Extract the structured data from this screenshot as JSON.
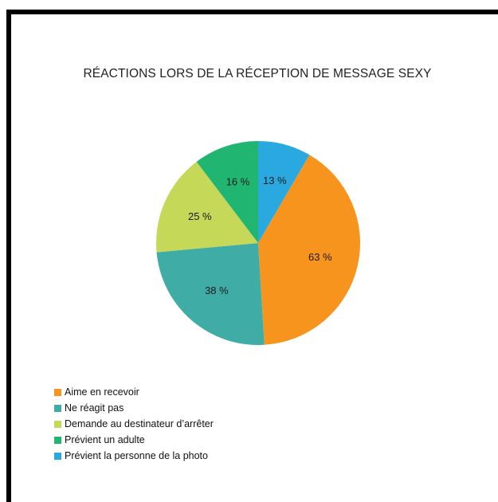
{
  "chart_data": {
    "type": "pie",
    "title": "RÉACTIONS LORS DE LA RÉCEPTION DE MESSAGE SEXY",
    "start_angle_deg": 0,
    "direction": "clockwise",
    "slices": [
      {
        "label": "Prévient la personne de la photo",
        "value": 13,
        "display": "13 %",
        "color": "#29a9e0"
      },
      {
        "label": "Aime en recevoir",
        "value": 63,
        "display": "63 %",
        "color": "#f7941d"
      },
      {
        "label": "Ne réagit pas",
        "value": 38,
        "display": "38 %",
        "color": "#40aca6"
      },
      {
        "label": "Demande au destinateur d’arrêter",
        "value": 25,
        "display": "25 %",
        "color": "#c5d858"
      },
      {
        "label": "Prévient un adulte",
        "value": 16,
        "display": "16 %",
        "color": "#20b672"
      }
    ],
    "legend": {
      "position": "bottom-left",
      "items": [
        {
          "label": "Aime en recevoir",
          "color": "#f7941d"
        },
        {
          "label": "Ne réagit pas",
          "color": "#40aca6"
        },
        {
          "label": "Demande au destinateur d’arrêter",
          "color": "#c5d858"
        },
        {
          "label": "Prévient un adulte",
          "color": "#20b672"
        },
        {
          "label": "Prévient la personne de la photo",
          "color": "#29a9e0"
        }
      ]
    }
  }
}
